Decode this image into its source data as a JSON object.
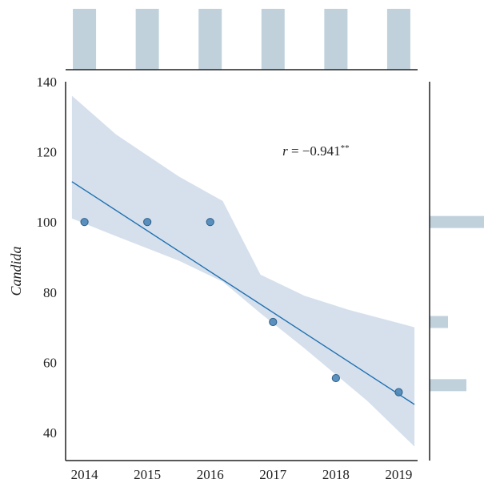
{
  "chart_data": {
    "type": "scatter",
    "x": [
      2014,
      2015,
      2016,
      2017,
      2018,
      2019
    ],
    "y": [
      100,
      100,
      100,
      71.5,
      55.5,
      51.5
    ],
    "xlabel": "",
    "ylabel": "Candida",
    "xlim": [
      2013.7,
      2019.3
    ],
    "ylim": [
      32,
      140
    ],
    "xticks": [
      "2014",
      "2015",
      "2016",
      "2017",
      "2018",
      "2019"
    ],
    "yticks": [
      "40",
      "60",
      "80",
      "100",
      "120",
      "140"
    ],
    "regression": {
      "x": [
        2013.8,
        2019.25
      ],
      "y": [
        111.5,
        48
      ],
      "ci_upper": [
        [
          2013.8,
          136
        ],
        [
          2014.5,
          125
        ],
        [
          2015.5,
          113
        ],
        [
          2016.2,
          106
        ],
        [
          2016.8,
          85
        ],
        [
          2017.5,
          79
        ],
        [
          2018.2,
          75
        ],
        [
          2019.25,
          70
        ]
      ],
      "ci_lower": [
        [
          2019.25,
          36
        ],
        [
          2018.5,
          49
        ],
        [
          2017.5,
          64
        ],
        [
          2016.8,
          74
        ],
        [
          2016.2,
          83
        ],
        [
          2015.5,
          89
        ],
        [
          2014.5,
          96
        ],
        [
          2013.8,
          101
        ]
      ]
    },
    "annotation": {
      "r_label": "r",
      "text": " = −0.941",
      "sup": "**",
      "x": 2017.15,
      "y": 119
    },
    "marginal_x": {
      "bins": [
        2014,
        2015,
        2016,
        2017,
        2018,
        2019
      ],
      "counts": [
        1,
        1,
        1,
        1,
        1,
        1
      ]
    },
    "marginal_y": [
      {
        "value": 100,
        "count": 3
      },
      {
        "value": 71.5,
        "count": 1
      },
      {
        "value": 53.5,
        "count": 2
      }
    ],
    "colors": {
      "line": "#1f6fb0",
      "ci_fill": "#d5e0ec",
      "point": "#4a86b8",
      "point_edge": "#2d5f8a",
      "hist": "#c0d1dc",
      "axis": "#222222"
    },
    "grid": false,
    "legend": "none"
  }
}
